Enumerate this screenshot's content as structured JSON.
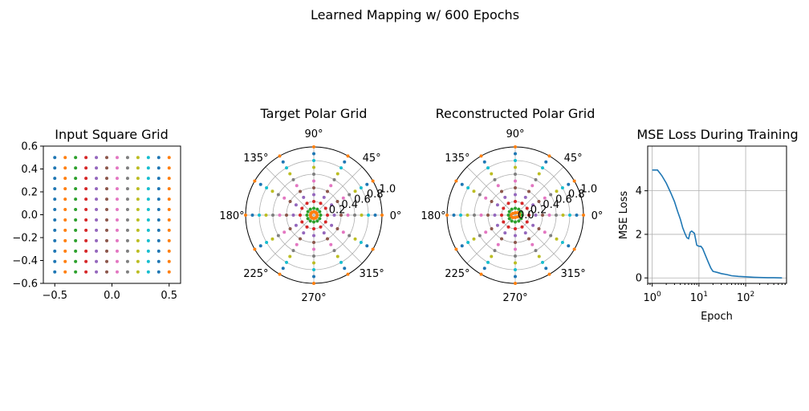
{
  "figure": {
    "suptitle": "Learned Mapping w/ 600 Epochs"
  },
  "palette": [
    "#1f77b4",
    "#ff7f0e",
    "#2ca02c",
    "#d62728",
    "#9467bd",
    "#8c564b",
    "#e377c2",
    "#7f7f7f",
    "#bcbd22",
    "#17becf"
  ],
  "chart_data": [
    {
      "type": "scatter",
      "title": "Input Square Grid",
      "xlabel": "",
      "ylabel": "",
      "xlim": [
        -0.6,
        0.6
      ],
      "ylim": [
        -0.6,
        0.6
      ],
      "xticks": [
        -0.5,
        0.0,
        0.5
      ],
      "xtick_labels": [
        "−0.5",
        "0.0",
        "0.5"
      ],
      "yticks": [
        -0.6,
        -0.4,
        -0.2,
        0.0,
        0.2,
        0.4,
        0.6
      ],
      "ytick_labels": [
        "−0.6",
        "−0.4",
        "−0.2",
        "0.0",
        "0.2",
        "0.4",
        "0.6"
      ],
      "grid_points": {
        "x_min": -0.5,
        "x_max": 0.5,
        "nx": 12,
        "y_min": -0.5,
        "y_max": 0.5,
        "ny": 12
      },
      "colored_by": "column"
    },
    {
      "type": "polar-scatter",
      "title": "Target Polar Grid",
      "theta_tick_labels": [
        "0°",
        "45°",
        "90°",
        "135°",
        "180°",
        "225°",
        "270°",
        "315°"
      ],
      "rlim": [
        0,
        1.0
      ],
      "r_tick_labels": [
        "0.2",
        "0.4",
        "0.6",
        "0.8",
        "1.0"
      ],
      "radii": [
        0.0,
        0.1,
        0.2,
        0.3,
        0.4,
        0.5,
        0.6,
        0.7,
        0.8,
        0.9,
        1.0
      ],
      "n_angles": 12,
      "ring_points": 12,
      "colored_by": "radius"
    },
    {
      "type": "polar-scatter",
      "title": "Reconstructed Polar Grid",
      "theta_tick_labels": [
        "0°",
        "45°",
        "90°",
        "135°",
        "180°",
        "225°",
        "270°",
        "315°"
      ],
      "rlim": [
        0,
        1.0
      ],
      "r_tick_labels": [
        "0.0",
        "0.2",
        "0.4",
        "0.6",
        "0.8",
        "1.0"
      ],
      "radii": [
        0.0,
        0.1,
        0.2,
        0.3,
        0.4,
        0.5,
        0.6,
        0.7,
        0.8,
        0.9,
        1.0
      ],
      "n_angles": 12,
      "ring_points": 12,
      "colored_by": "radius",
      "note_center_ellipse": [
        0.07,
        0.035
      ]
    },
    {
      "type": "line",
      "title": "MSE Loss During Training",
      "xlabel": "Epoch",
      "ylabel": "MSE Loss",
      "xscale": "log",
      "xlim": [
        0.8,
        750
      ],
      "ylim": [
        -0.25,
        6.05
      ],
      "xtick_labels": [
        "10^0",
        "10^1",
        "10^2"
      ],
      "yticks": [
        0,
        2,
        4
      ],
      "ytick_labels": [
        "0",
        "2",
        "4"
      ],
      "grid": true,
      "color": "#1f77b4",
      "series": [
        {
          "x": [
            1,
            1.3,
            1.6,
            2,
            2.5,
            3,
            3.5,
            4,
            4.5,
            5,
            5.5,
            6,
            6.5,
            7,
            8,
            9,
            10,
            11,
            12,
            14,
            16,
            18,
            20,
            25,
            30,
            40,
            50,
            70,
            100,
            150,
            200,
            300,
            400,
            600
          ],
          "y": [
            4.95,
            4.95,
            4.7,
            4.35,
            3.9,
            3.5,
            3.05,
            2.7,
            2.3,
            2.05,
            1.85,
            1.8,
            2.1,
            2.15,
            2.05,
            1.5,
            1.45,
            1.45,
            1.35,
            1.0,
            0.7,
            0.45,
            0.3,
            0.25,
            0.2,
            0.15,
            0.1,
            0.07,
            0.05,
            0.03,
            0.02,
            0.01,
            0.01,
            0.0
          ]
        }
      ]
    }
  ]
}
